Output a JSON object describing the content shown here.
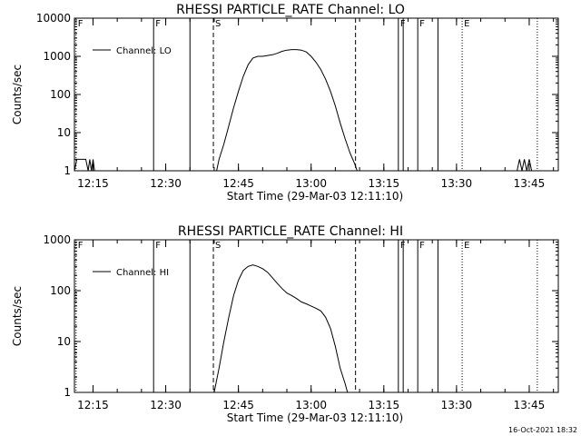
{
  "timestamp": "16-Oct-2021 18:32",
  "chart_data": [
    {
      "type": "line",
      "title": "RHESSI PARTICLE_RATE Channel: LO",
      "xlabel": "Start Time (29-Mar-03 12:11:10)",
      "ylabel": "Counts/sec",
      "y_scale": "log",
      "ylim": [
        1,
        10000
      ],
      "xlim": [
        "12:11:10",
        "13:51:00"
      ],
      "x_ticks": [
        "12:15",
        "12:30",
        "12:45",
        "13:00",
        "13:15",
        "13:30",
        "13:45"
      ],
      "y_ticks": [
        "1",
        "10",
        "100",
        "1000",
        "10000"
      ],
      "legend": "top-left",
      "series": [
        {
          "name": "Channel: LO",
          "x": [
            "12:11:10",
            "12:11:40",
            "12:12:00",
            "12:13:30",
            "12:14:00",
            "12:14:20",
            "12:14:40",
            "12:15:00",
            "12:15:20",
            "12:15:40",
            "12:16:00",
            "12:40:30",
            "12:41:00",
            "12:42:00",
            "12:43:00",
            "12:44:00",
            "12:45:00",
            "12:46:00",
            "12:47:00",
            "12:48:00",
            "12:49:00",
            "12:50:00",
            "12:51:00",
            "12:52:00",
            "12:53:00",
            "12:54:00",
            "12:55:00",
            "12:56:00",
            "12:57:00",
            "12:58:00",
            "12:59:00",
            "13:00:00",
            "13:01:00",
            "13:02:00",
            "13:03:00",
            "13:04:00",
            "13:05:00",
            "13:06:00",
            "13:07:00",
            "13:08:00",
            "13:09:00",
            "13:09:30",
            "13:10:00",
            "13:42:00",
            "13:42:30",
            "13:43:00",
            "13:43:30",
            "13:44:00",
            "13:44:30",
            "13:45:00",
            "13:45:30",
            "13:46:00"
          ],
          "values": [
            1,
            2,
            2,
            2,
            1,
            2,
            1,
            2,
            1,
            1,
            1,
            1,
            2,
            5,
            15,
            45,
            120,
            300,
            600,
            900,
            1000,
            1000,
            1050,
            1100,
            1200,
            1350,
            1450,
            1500,
            1500,
            1450,
            1300,
            1000,
            700,
            450,
            250,
            120,
            50,
            18,
            7,
            3,
            1.5,
            1,
            1,
            1,
            1,
            2,
            1,
            2,
            1,
            2,
            1,
            1
          ]
        }
      ],
      "annotations": [
        {
          "text": "F",
          "x": "12:11:30",
          "style": "dotted"
        },
        {
          "text": "F",
          "x": "12:27:30",
          "style": "solid"
        },
        {
          "text": "",
          "x": "12:35:00",
          "style": "solid"
        },
        {
          "text": "S",
          "x": "12:39:50",
          "style": "dashed"
        },
        {
          "text": "",
          "x": "13:09:10",
          "style": "dashed"
        },
        {
          "text": "F",
          "x": "13:18:00",
          "style": "solid"
        },
        {
          "text": "",
          "x": "13:19:00",
          "style": "solid"
        },
        {
          "text": "F",
          "x": "13:22:00",
          "style": "solid"
        },
        {
          "text": "",
          "x": "13:26:10",
          "style": "solid"
        },
        {
          "text": "E",
          "x": "13:31:10",
          "style": "dotted"
        },
        {
          "text": "",
          "x": "13:46:40",
          "style": "dotted"
        }
      ]
    },
    {
      "type": "line",
      "title": "RHESSI PARTICLE_RATE Channel: HI",
      "xlabel": "Start Time (29-Mar-03 12:11:10)",
      "ylabel": "Counts/sec",
      "y_scale": "log",
      "ylim": [
        1,
        1000
      ],
      "xlim": [
        "12:11:10",
        "13:51:00"
      ],
      "x_ticks": [
        "12:15",
        "12:30",
        "12:45",
        "13:00",
        "13:15",
        "13:30",
        "13:45"
      ],
      "y_ticks": [
        "1",
        "10",
        "100",
        "1000"
      ],
      "legend": "top-left",
      "series": [
        {
          "name": "Channel: HI",
          "x": [
            "12:40:00",
            "12:41:00",
            "12:42:00",
            "12:43:00",
            "12:44:00",
            "12:45:00",
            "12:46:00",
            "12:47:00",
            "12:48:00",
            "12:49:00",
            "12:50:00",
            "12:51:00",
            "12:52:00",
            "12:53:00",
            "12:54:00",
            "12:55:00",
            "12:56:00",
            "12:57:00",
            "12:58:00",
            "12:59:00",
            "13:00:00",
            "13:01:00",
            "13:02:00",
            "13:03:00",
            "13:04:00",
            "13:05:00",
            "13:06:00",
            "13:07:00",
            "13:07:30"
          ],
          "values": [
            1,
            3,
            10,
            30,
            80,
            160,
            250,
            300,
            320,
            300,
            270,
            230,
            180,
            140,
            110,
            90,
            80,
            70,
            60,
            55,
            50,
            45,
            40,
            30,
            18,
            8,
            3,
            1.5,
            1
          ]
        }
      ],
      "annotations": [
        {
          "text": "F",
          "x": "12:11:30",
          "style": "dotted"
        },
        {
          "text": "F",
          "x": "12:27:30",
          "style": "solid"
        },
        {
          "text": "",
          "x": "12:35:00",
          "style": "solid"
        },
        {
          "text": "S",
          "x": "12:39:50",
          "style": "dashed"
        },
        {
          "text": "",
          "x": "13:09:10",
          "style": "dashed"
        },
        {
          "text": "F",
          "x": "13:18:00",
          "style": "solid"
        },
        {
          "text": "",
          "x": "13:19:00",
          "style": "solid"
        },
        {
          "text": "F",
          "x": "13:22:00",
          "style": "solid"
        },
        {
          "text": "",
          "x": "13:26:10",
          "style": "solid"
        },
        {
          "text": "E",
          "x": "13:31:10",
          "style": "dotted"
        },
        {
          "text": "",
          "x": "13:46:40",
          "style": "dotted"
        }
      ]
    }
  ]
}
